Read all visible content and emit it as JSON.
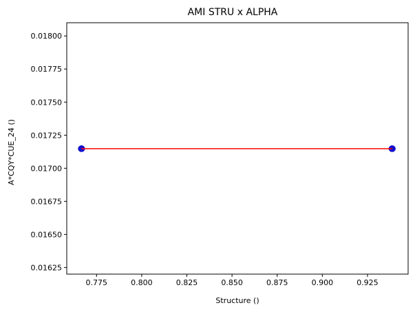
{
  "chart_data": {
    "type": "scatter",
    "title": "AMI STRU x ALPHA",
    "xlabel": "Structure ()",
    "ylabel": "A*CQY*CUE_24 ()",
    "xlim": [
      0.7585,
      0.9475
    ],
    "ylim": [
      0.0162,
      0.0181
    ],
    "xticks": [
      "0.775",
      "0.800",
      "0.825",
      "0.850",
      "0.875",
      "0.900",
      "0.925"
    ],
    "yticks": [
      "0.01625",
      "0.01650",
      "0.01675",
      "0.01700",
      "0.01725",
      "0.01750",
      "0.01775",
      "0.01800"
    ],
    "grid": false,
    "series": [
      {
        "type": "scatter",
        "color": "#0000cc",
        "points": [
          {
            "x": 0.7665,
            "y": 0.017148
          },
          {
            "x": 0.7668,
            "y": 0.017148
          },
          {
            "x": 0.9385,
            "y": 0.017148
          },
          {
            "x": 0.9388,
            "y": 0.017148
          }
        ]
      },
      {
        "type": "line",
        "color": "#ff0000",
        "points": [
          {
            "x": 0.7665,
            "y": 0.017148
          },
          {
            "x": 0.9388,
            "y": 0.017148
          }
        ]
      }
    ]
  }
}
